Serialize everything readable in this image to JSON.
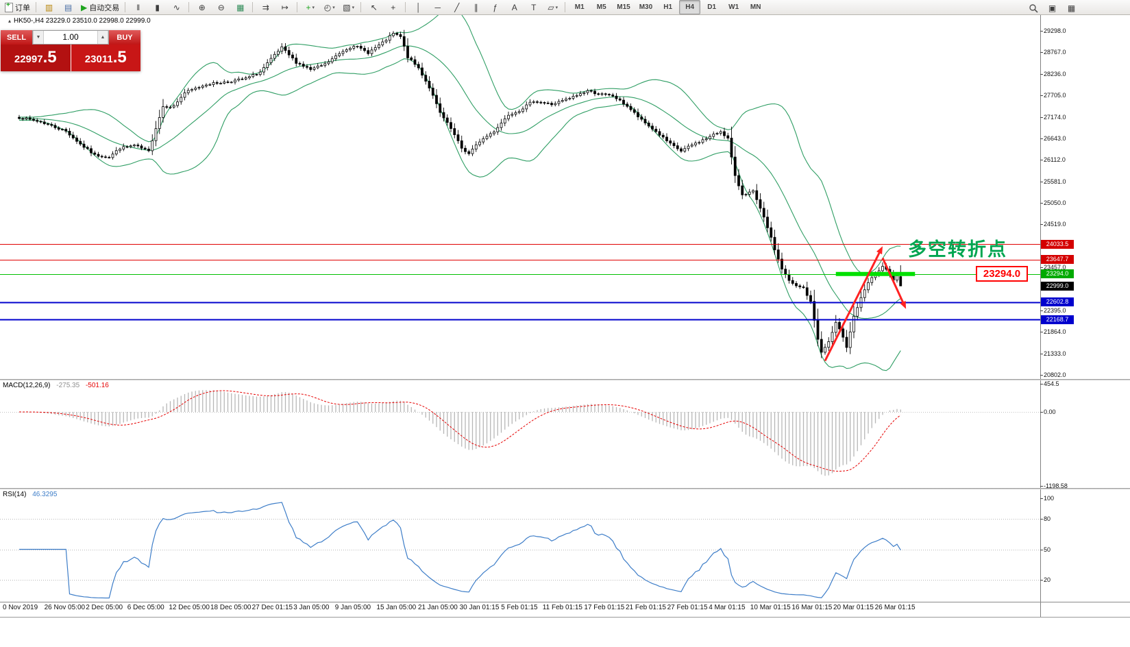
{
  "window": {
    "header": {
      "symbol_line": "HK50-,H4  23229.0 23510.0 22998.0 22999.0"
    },
    "toolbar": {
      "groups": [
        {
          "items": [
            {
              "name": "new-order-button",
              "icon": "doc",
              "label": "订单"
            }
          ]
        },
        {
          "items": [
            {
              "name": "market-watch-icon",
              "glyph": "▥",
              "color": "#b8860b"
            },
            {
              "name": "navigator-icon",
              "glyph": "▤",
              "color": "#4a6fa5"
            },
            {
              "name": "autotrading-button",
              "glyph": "▶",
              "color": "#1fa51f",
              "label": "自动交易"
            }
          ]
        },
        {
          "items": [
            {
              "name": "bar-chart-type-icon",
              "glyph": "‖"
            },
            {
              "name": "candlestick-type-icon",
              "glyph": "▮"
            },
            {
              "name": "line-chart-type-icon",
              "glyph": "∿"
            }
          ]
        },
        {
          "items": [
            {
              "name": "zoom-in-icon",
              "glyph": "⊕"
            },
            {
              "name": "zoom-out-icon",
              "glyph": "⊖"
            },
            {
              "name": "tile-windows-icon",
              "glyph": "▦",
              "color": "#2e8b57"
            }
          ]
        },
        {
          "items": [
            {
              "name": "auto-scroll-icon",
              "glyph": "⇉"
            },
            {
              "name": "chart-shift-icon",
              "glyph": "↦"
            }
          ]
        },
        {
          "items": [
            {
              "name": "indicators-icon",
              "glyph": "+",
              "color": "#1fa51f",
              "caret": true
            },
            {
              "name": "periods-icon",
              "glyph": "◴",
              "caret": true
            },
            {
              "name": "templates-icon",
              "glyph": "▧",
              "caret": true
            }
          ]
        },
        {
          "items": [
            {
              "name": "cursor-icon",
              "glyph": "↖"
            },
            {
              "name": "crosshair-icon",
              "glyph": "+"
            }
          ]
        },
        {
          "items": [
            {
              "name": "vertical-line-icon",
              "glyph": "│"
            },
            {
              "name": "horizontal-line-icon",
              "glyph": "─"
            },
            {
              "name": "trendline-icon",
              "glyph": "╱"
            },
            {
              "name": "channel-icon",
              "glyph": "∥"
            },
            {
              "name": "fibonacci-icon",
              "glyph": "ƒ"
            },
            {
              "name": "text-icon",
              "glyph": "A"
            },
            {
              "name": "text-label-icon",
              "glyph": "T"
            },
            {
              "name": "shapes-icon",
              "glyph": "▱",
              "caret": true
            }
          ]
        },
        {
          "items": [
            {
              "name": "tf-m1",
              "label": "M1",
              "tf": true
            },
            {
              "name": "tf-m5",
              "label": "M5",
              "tf": true
            },
            {
              "name": "tf-m15",
              "label": "M15",
              "tf": true
            },
            {
              "name": "tf-m30",
              "label": "M30",
              "tf": true
            },
            {
              "name": "tf-h1",
              "label": "H1",
              "tf": true
            },
            {
              "name": "tf-h4",
              "label": "H4",
              "tf": true,
              "active": true
            },
            {
              "name": "tf-d1",
              "label": "D1",
              "tf": true
            },
            {
              "name": "tf-w1",
              "label": "W1",
              "tf": true
            },
            {
              "name": "tf-mn",
              "label": "MN",
              "tf": true
            }
          ]
        }
      ]
    }
  },
  "trade_panel": {
    "sell_label": "SELL",
    "buy_label": "BUY",
    "volume": "1.00",
    "sell_price_main": "22997",
    "sell_price_pip": ".5",
    "buy_price_main": "23011",
    "buy_price_pip": ".5",
    "panel_red": "#c01616"
  },
  "chart_data": {
    "type": "candlestick",
    "symbol": "HK50-",
    "timeframe": "H4",
    "title": "HK50-,H4",
    "current_bar": {
      "open": 23229.0,
      "high": 23510.0,
      "low": 22998.0,
      "close": 22999.0
    },
    "num_candles": 246,
    "close_anchors": [
      [
        0,
        27160
      ],
      [
        6,
        27050
      ],
      [
        13,
        26820
      ],
      [
        17,
        26500
      ],
      [
        21,
        26230
      ],
      [
        25,
        26180
      ],
      [
        28,
        26400
      ],
      [
        32,
        26470
      ],
      [
        36,
        26320
      ],
      [
        38,
        26900
      ],
      [
        40,
        27430
      ],
      [
        43,
        27440
      ],
      [
        46,
        27770
      ],
      [
        52,
        27980
      ],
      [
        58,
        28040
      ],
      [
        63,
        28120
      ],
      [
        67,
        28280
      ],
      [
        71,
        28700
      ],
      [
        73,
        28880
      ],
      [
        77,
        28520
      ],
      [
        81,
        28340
      ],
      [
        85,
        28470
      ],
      [
        90,
        28800
      ],
      [
        93,
        28940
      ],
      [
        97,
        28760
      ],
      [
        101,
        29000
      ],
      [
        104,
        29230
      ],
      [
        106,
        29150
      ],
      [
        108,
        28650
      ],
      [
        111,
        28380
      ],
      [
        114,
        27900
      ],
      [
        117,
        27270
      ],
      [
        120,
        26880
      ],
      [
        123,
        26400
      ],
      [
        125,
        26260
      ],
      [
        128,
        26570
      ],
      [
        132,
        26820
      ],
      [
        136,
        27230
      ],
      [
        139,
        27330
      ],
      [
        143,
        27570
      ],
      [
        148,
        27480
      ],
      [
        153,
        27630
      ],
      [
        158,
        27820
      ],
      [
        161,
        27740
      ],
      [
        165,
        27690
      ],
      [
        169,
        27440
      ],
      [
        173,
        27090
      ],
      [
        177,
        26810
      ],
      [
        181,
        26500
      ],
      [
        184,
        26330
      ],
      [
        187,
        26480
      ],
      [
        191,
        26640
      ],
      [
        195,
        26820
      ],
      [
        197,
        26640
      ],
      [
        199,
        25700
      ],
      [
        201,
        25260
      ],
      [
        204,
        25330
      ],
      [
        206,
        24900
      ],
      [
        208,
        24450
      ],
      [
        210,
        23900
      ],
      [
        212,
        23420
      ],
      [
        214,
        23120
      ],
      [
        216,
        22990
      ],
      [
        218,
        22950
      ],
      [
        220,
        22600
      ],
      [
        222,
        21700
      ],
      [
        223,
        21350
      ],
      [
        225,
        21620
      ],
      [
        227,
        22080
      ],
      [
        229,
        21750
      ],
      [
        230,
        21500
      ],
      [
        232,
        22250
      ],
      [
        234,
        22690
      ],
      [
        236,
        23080
      ],
      [
        238,
        23290
      ],
      [
        240,
        23460
      ],
      [
        241,
        23400
      ],
      [
        243,
        23150
      ],
      [
        244,
        23229
      ],
      [
        245,
        22999
      ]
    ],
    "noise": {
      "seed": 7,
      "close_wiggle": 26,
      "wick_base": 16,
      "wick_rand": 60,
      "wick_trend_factor": 0.55
    },
    "price_axis": {
      "ticks": [
        29298.0,
        28767.0,
        28236.0,
        27705.0,
        27174.0,
        26643.0,
        26112.0,
        25581.0,
        25050.0,
        24519.0,
        23457.0,
        22395.0,
        21864.0,
        21333.0,
        20802.0
      ]
    },
    "time_axis": {
      "labels": [
        "0 Nov 2019",
        "26 Nov 05:00",
        "2 Dec 05:00",
        "6 Dec 05:00",
        "12 Dec 05:00",
        "18 Dec 05:00",
        "27 Dec 01:15",
        "3 Jan 05:00",
        "9 Jan 05:00",
        "15 Jan 05:00",
        "21 Jan 05:00",
        "30 Jan 01:15",
        "5 Feb 01:15",
        "11 Feb 01:15",
        "17 Feb 01:15",
        "21 Feb 01:15",
        "27 Feb 01:15",
        "4 Mar 01:15",
        "10 Mar 01:15",
        "16 Mar 01:15",
        "20 Mar 01:15",
        "26 Mar 01:15"
      ]
    },
    "indicators": {
      "bollinger": {
        "period": 20,
        "deviations": 2,
        "color": "#2f9e64"
      },
      "macd": {
        "label": "MACD(12,26,9)",
        "fast": 12,
        "slow": 26,
        "signal_period": 9,
        "value": "-275.35",
        "signal_value": "-501.16",
        "hist_color": "#b6b6b6",
        "signal_color": "#e60000",
        "ticks": [
          454.5,
          0.0,
          -1198.58
        ],
        "tick_labels": [
          "454.5",
          "0.00",
          "-1198.58"
        ]
      },
      "rsi": {
        "label": "RSI(14)",
        "period": 14,
        "value": "46.3295",
        "color": "#3d7dc8",
        "levels": [
          80,
          50,
          20
        ],
        "ticks": [
          100,
          80,
          50,
          20
        ],
        "tick_labels": [
          "100",
          "80",
          "50",
          "20"
        ]
      }
    },
    "objects": {
      "hlines": [
        {
          "price": 24033.5,
          "label": "24033.5",
          "color": "#e00000",
          "width": 1,
          "chip_bg": "#d40000"
        },
        {
          "price": 23647.7,
          "label": "23647.7",
          "color": "#e00000",
          "width": 1,
          "chip_bg": "#d40000"
        },
        {
          "price": 23294.0,
          "label": "23294.0",
          "color": "#00c000",
          "width": 1,
          "chip_bg": "#00aa00"
        },
        {
          "price": 22602.8,
          "label": "22602.8",
          "color": "#0000cd",
          "width": 2,
          "chip_bg": "#0000cd"
        },
        {
          "price": 22168.7,
          "label": "22168.7",
          "color": "#0000cd",
          "width": 2,
          "chip_bg": "#0000cd"
        }
      ],
      "price_marker": {
        "price": 22999.0,
        "label": "22999.0",
        "chip_bg": "#000000"
      },
      "green_segment": {
        "price": 23294.0,
        "from_index": 227,
        "to_index": 249,
        "color": "#00e000",
        "width": 6
      },
      "arrows": [
        {
          "from_index": 224,
          "from_price": 21150,
          "to_index": 240,
          "to_price": 23980,
          "color": "#ff2222",
          "width": 3
        },
        {
          "from_index": 240,
          "from_price": 23690,
          "to_index": 246.5,
          "to_price": 22430,
          "color": "#ff2222",
          "width": 3
        }
      ]
    },
    "annotations": {
      "turning_point": {
        "text": "多空转折点",
        "color": "#00a550"
      },
      "price_tag": {
        "text": "23294.0",
        "color": "#ff0000"
      }
    }
  }
}
